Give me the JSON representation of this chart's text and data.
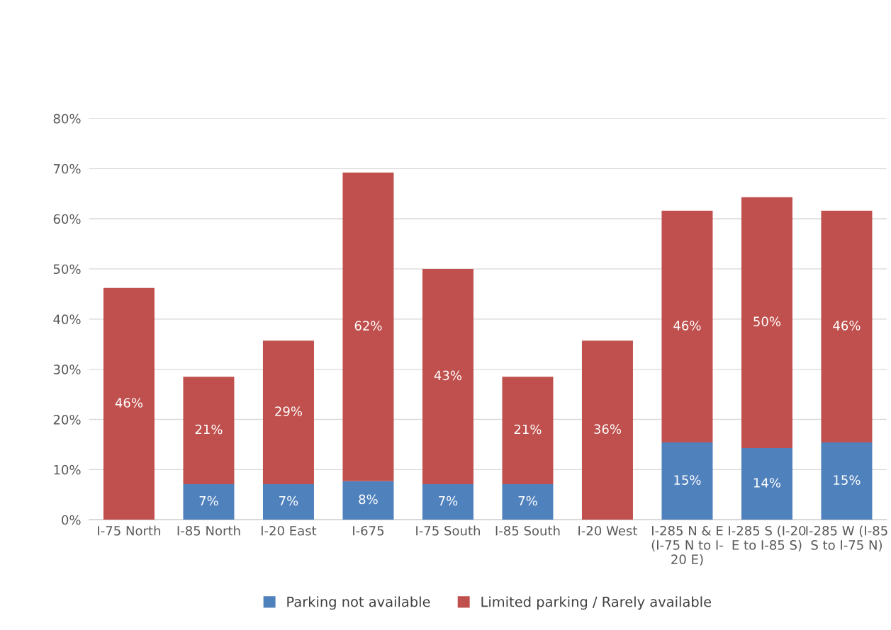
{
  "chart_data": {
    "type": "bar",
    "stacked": true,
    "categories": [
      "I-75 North",
      "I-85 North",
      "I-20 East",
      "I-675",
      "I-75 South",
      "I-85 South",
      "I-20 West",
      "I-285 N & E\n(I-75 N to I-\n20 E)",
      "I-285 S (I-20\nE to I-85 S)",
      "I-285 W (I-85\nS to I-75 N)"
    ],
    "series": [
      {
        "name": "Parking not available",
        "color": "#4f81bd",
        "values": [
          null,
          7.1,
          7.1,
          7.7,
          7.1,
          7.1,
          null,
          15.4,
          14.3,
          15.4
        ],
        "value_labels": [
          null,
          "7%",
          "7%",
          "8%",
          "7%",
          "7%",
          null,
          "15%",
          "14%",
          "15%"
        ]
      },
      {
        "name": "Limited parking / Rarely available",
        "color": "#c0504d",
        "values": [
          46.2,
          21.4,
          28.6,
          61.5,
          42.9,
          21.4,
          35.7,
          46.2,
          50.0,
          46.2
        ],
        "value_labels": [
          "46%",
          "21%",
          "29%",
          "62%",
          "43%",
          "21%",
          "36%",
          "46%",
          "50%",
          "46%"
        ]
      }
    ],
    "ylim": [
      0,
      80
    ],
    "yticks": [
      {
        "value": 0,
        "label": "0%"
      },
      {
        "value": 10,
        "label": "10%"
      },
      {
        "value": 20,
        "label": "20%"
      },
      {
        "value": 30,
        "label": "30%"
      },
      {
        "value": 40,
        "label": "40%"
      },
      {
        "value": 50,
        "label": "50%"
      },
      {
        "value": 60,
        "label": "60%"
      },
      {
        "value": 70,
        "label": "70%"
      },
      {
        "value": 80,
        "label": "80%"
      }
    ],
    "grid": "y",
    "legend": "bottom"
  }
}
